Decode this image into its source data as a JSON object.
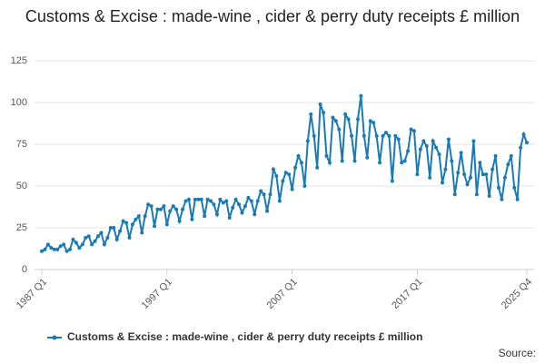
{
  "chart_data": {
    "type": "line",
    "title": "Customs & Excise : made-wine , cider & perry duty receipts £ million",
    "categories": [
      "1987 Q1",
      null,
      null,
      null,
      null,
      null,
      null,
      null,
      null,
      null,
      null,
      null,
      null,
      null,
      null,
      null,
      null,
      null,
      null,
      null,
      null,
      null,
      null,
      null,
      null,
      null,
      null,
      null,
      null,
      null,
      null,
      null,
      null,
      null,
      null,
      null,
      null,
      null,
      null,
      null,
      "1997 Q1",
      null,
      null,
      null,
      null,
      null,
      null,
      null,
      null,
      null,
      null,
      null,
      null,
      null,
      null,
      null,
      null,
      null,
      null,
      null,
      null,
      null,
      null,
      null,
      null,
      null,
      null,
      null,
      null,
      null,
      null,
      null,
      null,
      null,
      null,
      null,
      null,
      null,
      null,
      null,
      "2007 Q1",
      null,
      null,
      null,
      null,
      null,
      null,
      null,
      null,
      null,
      null,
      null,
      null,
      null,
      null,
      null,
      null,
      null,
      null,
      null,
      null,
      null,
      null,
      null,
      null,
      null,
      null,
      null,
      null,
      null,
      null,
      null,
      null,
      null,
      null,
      null,
      null,
      null,
      null,
      null,
      "2017 Q1",
      null,
      null,
      null,
      null,
      null,
      null,
      null,
      null,
      null,
      null,
      null,
      null,
      null,
      null,
      null,
      null,
      null,
      null,
      null,
      null,
      null,
      null,
      null,
      null,
      null,
      null,
      null,
      null,
      null,
      null,
      null,
      null,
      null,
      null,
      "2025 Q4"
    ],
    "series": [
      {
        "name": "Customs & Excise : made-wine , cider & perry duty receipts £ million",
        "color": "#1a7ab5",
        "values": [
          11,
          12,
          15,
          13,
          12,
          12,
          14,
          15,
          11,
          12,
          18,
          16,
          13,
          15,
          19,
          20,
          15,
          17,
          20,
          22,
          15,
          19,
          25,
          25,
          18,
          23,
          29,
          28,
          19,
          27,
          30,
          32,
          22,
          32,
          39,
          38,
          26,
          36,
          36,
          38,
          27,
          35,
          38,
          36,
          29,
          36,
          41,
          42,
          30,
          42,
          42,
          42,
          32,
          42,
          41,
          39,
          33,
          42,
          40,
          41,
          31,
          37,
          42,
          39,
          34,
          38,
          43,
          41,
          33,
          41,
          47,
          45,
          35,
          45,
          60,
          56,
          41,
          53,
          58,
          57,
          48,
          61,
          68,
          64,
          50,
          77,
          93,
          80,
          61,
          99,
          94,
          68,
          64,
          91,
          89,
          84,
          65,
          93,
          90,
          80,
          65,
          90,
          104,
          80,
          67,
          89,
          88,
          80,
          64,
          80,
          82,
          80,
          53,
          80,
          78,
          64,
          65,
          71,
          84,
          83,
          57,
          72,
          77,
          74,
          55,
          77,
          73,
          69,
          52,
          60,
          78,
          65,
          45,
          58,
          70,
          57,
          51,
          55,
          77,
          45,
          64,
          57,
          57,
          44,
          60,
          68,
          49,
          42,
          55,
          63,
          68,
          49,
          42,
          73,
          81,
          76
        ]
      }
    ],
    "ylim": [
      0,
      125
    ],
    "yticks": [
      0,
      25,
      50,
      75,
      100,
      125
    ],
    "grid": true,
    "source": "Source:"
  }
}
